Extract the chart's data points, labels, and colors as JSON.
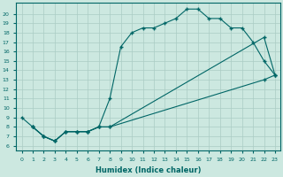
{
  "xlabel": "Humidex (Indice chaleur)",
  "bg_color": "#cce8e0",
  "line_color": "#006666",
  "grid_color": "#aaccc4",
  "xlim": [
    -0.5,
    23.5
  ],
  "ylim": [
    5.5,
    21.2
  ],
  "xticks": [
    0,
    1,
    2,
    3,
    4,
    5,
    6,
    7,
    8,
    9,
    10,
    11,
    12,
    13,
    14,
    15,
    16,
    17,
    18,
    19,
    20,
    21,
    22,
    23
  ],
  "yticks": [
    6,
    7,
    8,
    9,
    10,
    11,
    12,
    13,
    14,
    15,
    16,
    17,
    18,
    19,
    20
  ],
  "curve1_x": [
    0,
    1,
    2,
    3,
    4,
    5,
    6,
    7,
    8,
    9,
    10,
    11,
    12,
    13,
    14,
    15,
    16,
    17,
    18,
    19,
    20,
    21,
    22,
    23
  ],
  "curve1_y": [
    9.0,
    8.0,
    7.0,
    6.5,
    7.5,
    7.5,
    7.5,
    8.0,
    11.0,
    16.5,
    18.0,
    18.5,
    18.5,
    19.0,
    19.5,
    20.5,
    20.5,
    19.5,
    19.5,
    18.5,
    18.5,
    17.0,
    15.0,
    13.5
  ],
  "curve2_x": [
    1,
    2,
    3,
    4,
    5,
    6,
    7,
    8,
    22,
    23
  ],
  "curve2_y": [
    8.0,
    7.0,
    6.5,
    7.5,
    7.5,
    7.5,
    8.0,
    8.0,
    17.5,
    13.5
  ],
  "curve3_x": [
    1,
    2,
    3,
    4,
    5,
    6,
    7,
    8,
    22,
    23
  ],
  "curve3_y": [
    8.0,
    7.0,
    6.5,
    7.5,
    7.5,
    7.5,
    8.0,
    8.0,
    13.0,
    13.5
  ]
}
